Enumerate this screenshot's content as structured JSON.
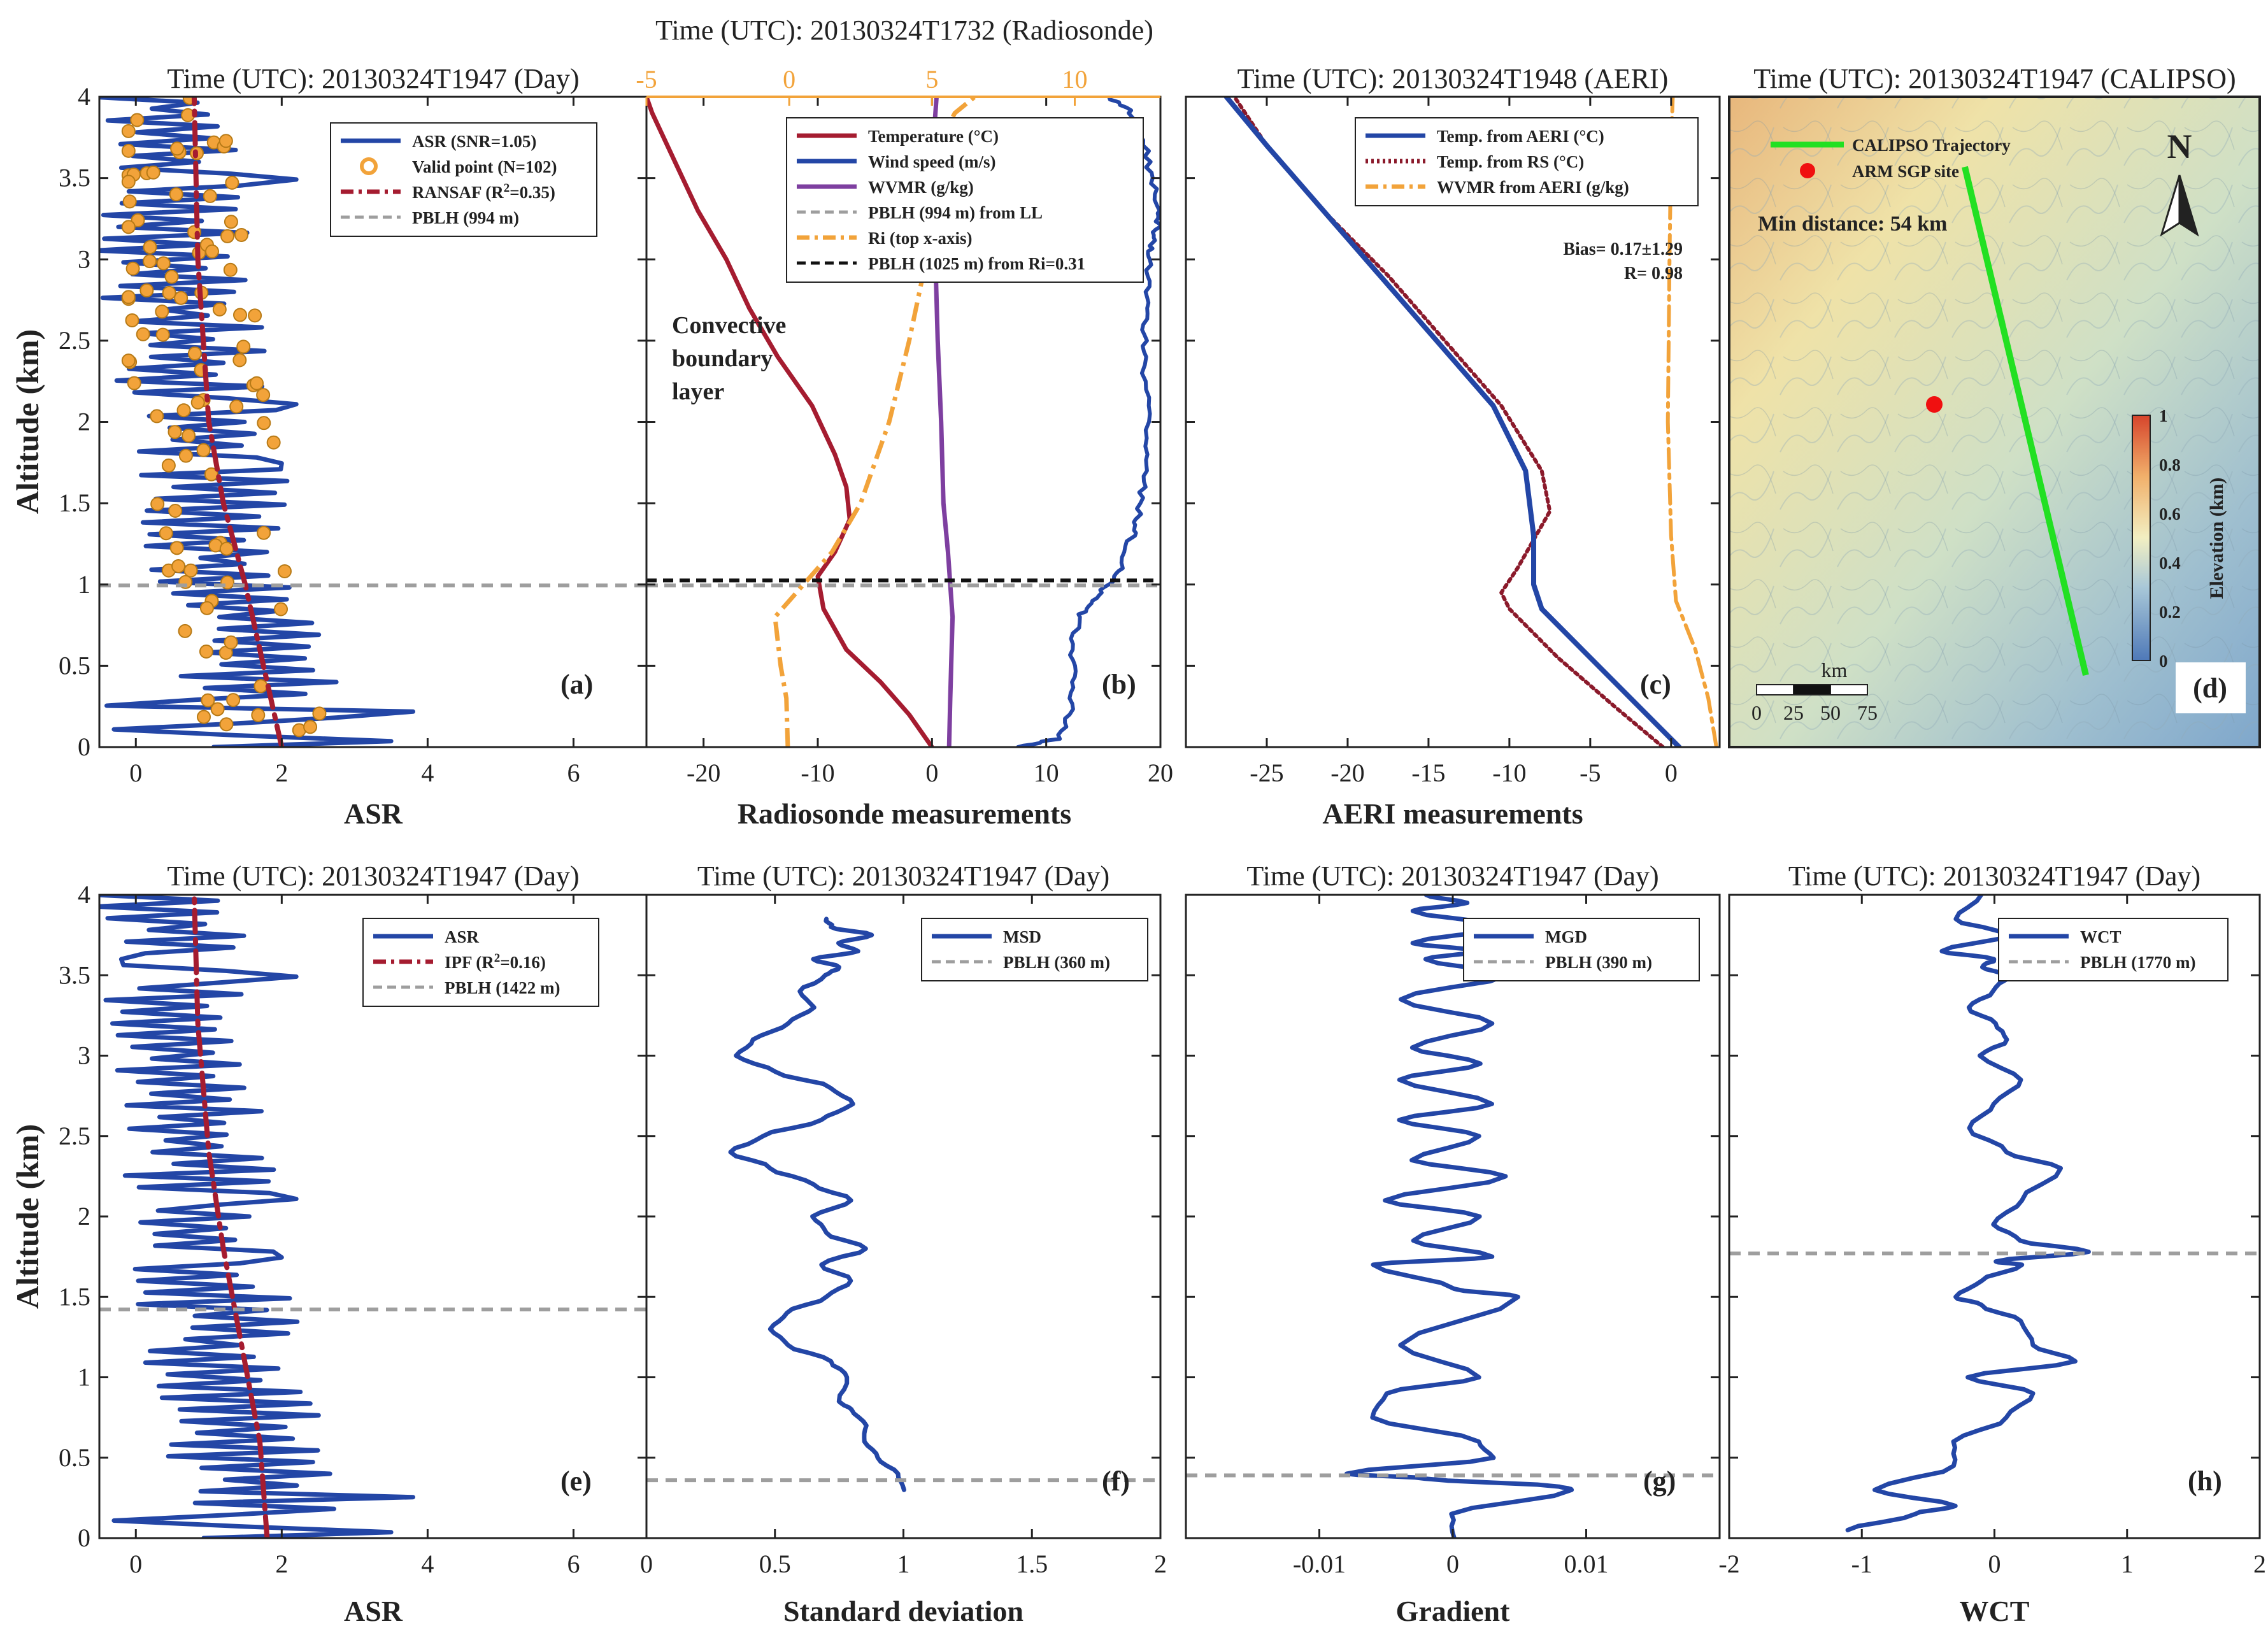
{
  "figure": {
    "y_label": "Altitude (km)",
    "y_ticks": [
      "0",
      "0.5",
      "1",
      "1.5",
      "2",
      "2.5",
      "3",
      "3.5",
      "4"
    ],
    "ylim": [
      0,
      4
    ]
  },
  "colors": {
    "blue": "#2346A6",
    "red": "#A51C30",
    "orange": "#F2A33A",
    "purple": "#7E3FA0",
    "gray": "#9E9E9E",
    "black": "#111111",
    "green": "#22E022",
    "maroon": "#8B1A2B"
  },
  "panels": {
    "a": {
      "title": "Time (UTC): 20130324T1947 (Day)",
      "xlabel": "ASR",
      "xticks": [
        "0",
        "2",
        "4",
        "6"
      ],
      "label": "(a)",
      "legend": [
        "ASR (SNR=1.05)",
        "Valid point (N=102)",
        "RANSAF (R2=0.35)",
        "PBLH (994 m)"
      ]
    },
    "b": {
      "title_top": "Time (UTC): 20130324T1732 (Radiosonde)",
      "xlabel": "Radiosonde measurements",
      "xticks": [
        "-20",
        "-10",
        "0",
        "10",
        "20"
      ],
      "top_ticks": [
        "-5",
        "0",
        "5",
        "10"
      ],
      "label": "(b)",
      "annotation": [
        "Convective",
        "boundary",
        "layer"
      ],
      "legend": [
        "Temperature (°C)",
        "Wind speed (m/s)",
        "WVMR (g/kg)",
        "PBLH (994 m) from LL",
        "Ri (top x-axis)",
        "PBLH (1025 m) from Ri=0.31"
      ]
    },
    "c": {
      "title": "Time (UTC): 20130324T1948 (AERI)",
      "xlabel": "AERI measurements",
      "xticks": [
        "-25",
        "-20",
        "-15",
        "-10",
        "-5",
        "0"
      ],
      "label": "(c)",
      "stats": [
        "Bias= 0.17±1.29",
        "R= 0.98"
      ],
      "legend": [
        "Temp. from AERI (°C)",
        "Temp. from RS (°C)",
        "WVMR from AERI (g/kg)"
      ]
    },
    "d": {
      "title": "Time (UTC): 20130324T1947 (CALIPSO)",
      "label": "(d)",
      "legend": [
        "CALIPSO Trajectory",
        "ARM SGP site"
      ],
      "min_distance": "Min distance: 54 km",
      "north": "N",
      "colorbar_label": "Elevation (km)",
      "colorbar_ticks": [
        "0",
        "0.2",
        "0.4",
        "0.6",
        "0.8",
        "1"
      ],
      "scale_unit": "km",
      "scale_ticks": [
        "0",
        "25",
        "50",
        "75"
      ]
    },
    "e": {
      "title": "Time (UTC): 20130324T1947 (Day)",
      "xlabel": "ASR",
      "xticks": [
        "0",
        "2",
        "4",
        "6"
      ],
      "label": "(e)",
      "legend": [
        "ASR",
        "IPF (R2=0.16)",
        "PBLH (1422 m)"
      ]
    },
    "f": {
      "title": "Time (UTC): 20130324T1947 (Day)",
      "xlabel": "Standard deviation",
      "xticks": [
        "0",
        "0.5",
        "1",
        "1.5",
        "2"
      ],
      "label": "(f)",
      "legend": [
        "MSD",
        "PBLH (360 m)"
      ]
    },
    "g": {
      "title": "Time (UTC): 20130324T1947 (Day)",
      "xlabel": "Gradient",
      "xticks": [
        "-0.01",
        "0",
        "0.01"
      ],
      "label": "(g)",
      "legend": [
        "MGD",
        "PBLH (390 m)"
      ]
    },
    "h": {
      "title": "Time (UTC): 20130324T1947 (Day)",
      "xlabel": "WCT",
      "xticks": [
        "-2",
        "-1",
        "0",
        "1",
        "2"
      ],
      "label": "(h)",
      "legend": [
        "WCT",
        "PBLH (1770 m)"
      ]
    }
  },
  "chart_data": [
    {
      "id": "a",
      "type": "line",
      "xlim": [
        -0.5,
        7.0
      ],
      "ylim": [
        0,
        4
      ],
      "series": [
        {
          "name": "ASR (SNR=1.05)",
          "style": "zigzag",
          "seed": 11,
          "amp_range": [
            0.2,
            2.6
          ],
          "y_range": [
            0.0,
            4.0
          ],
          "segments": 110,
          "base": [
            [
              0.0,
              1.9
            ],
            [
              0.5,
              1.7
            ],
            [
              1.0,
              1.25
            ],
            [
              2.0,
              0.9
            ],
            [
              3.0,
              0.6
            ],
            [
              4.0,
              0.5
            ]
          ],
          "spikes": [
            [
              0.05,
              3.5
            ],
            [
              0.1,
              -0.3
            ],
            [
              0.2,
              3.8
            ],
            [
              0.25,
              -0.4
            ],
            [
              1.75,
              2.0
            ],
            [
              2.1,
              2.2
            ],
            [
              3.5,
              2.2
            ],
            [
              3.55,
              -0.2
            ]
          ]
        },
        {
          "name": "Valid point (N=102)",
          "style": "scatter",
          "count": 102,
          "seed": 21,
          "y_range": [
            0.1,
            4.0
          ],
          "x_spread": [
            -0.1,
            2.5
          ]
        },
        {
          "name": "RANSAF (R2=0.35)",
          "style": "dashdot",
          "x": [
            2.0,
            1.75,
            1.5,
            1.2,
            1.0,
            0.85,
            0.8
          ],
          "y": [
            0.0,
            0.5,
            1.0,
            1.5,
            2.0,
            3.0,
            4.0
          ]
        },
        {
          "name": "PBLH (994 m)",
          "style": "hline",
          "y": 0.994
        }
      ]
    },
    {
      "id": "b",
      "type": "line",
      "xlim": [
        -25,
        20
      ],
      "ylim": [
        0,
        4
      ],
      "top_xlim": [
        -5,
        13
      ],
      "series": [
        {
          "name": "Temperature (°C)",
          "x": [
            0.0,
            -2.0,
            -4.5,
            -7.5,
            -9.5,
            -10.0,
            -8.5,
            -7.2,
            -7.5,
            -8.5,
            -10.5,
            -13.5,
            -16.0,
            -18.0,
            -20.5,
            -22.5,
            -24.5,
            -25.0
          ],
          "y": [
            0.0,
            0.2,
            0.4,
            0.6,
            0.85,
            1.05,
            1.2,
            1.4,
            1.6,
            1.8,
            2.1,
            2.4,
            2.7,
            3.0,
            3.3,
            3.6,
            3.9,
            4.0
          ]
        },
        {
          "name": "Wind speed (m/s)",
          "x": [
            7.5,
            11.0,
            12.0,
            12.5,
            12.2,
            12.8,
            14.0,
            15.5,
            16.5,
            17.5,
            18.0,
            18.5,
            19.0,
            18.8,
            18.6,
            18.5,
            18.8,
            19.0,
            19.2,
            19.8,
            20.0,
            19.2,
            18.7,
            17.5,
            15.5
          ],
          "y": [
            0.0,
            0.05,
            0.2,
            0.4,
            0.6,
            0.8,
            0.9,
            1.0,
            1.1,
            1.3,
            1.4,
            1.6,
            1.8,
            2.1,
            2.4,
            2.6,
            2.8,
            3.0,
            3.1,
            3.2,
            3.3,
            3.5,
            3.7,
            3.9,
            4.0
          ]
        },
        {
          "name": "WVMR (g/kg)",
          "x": [
            1.5,
            1.6,
            1.8,
            1.4,
            1.0,
            0.8,
            0.5,
            0.3,
            0.2,
            0.2,
            0.3,
            0.4
          ],
          "y": [
            0.0,
            0.3,
            0.8,
            1.2,
            1.5,
            2.0,
            2.5,
            3.0,
            3.5,
            3.8,
            3.9,
            4.0
          ]
        },
        {
          "name": "PBLH (994 m) from LL",
          "style": "hline",
          "y": 0.994
        },
        {
          "name": "Ri (top x-axis)",
          "axis": "top",
          "x": [
            -0.05,
            -0.1,
            -0.3,
            -0.5,
            0.5,
            1.5,
            2.5,
            3.5,
            4.2,
            4.8,
            4.6,
            5.8,
            6.5
          ],
          "y": [
            0.0,
            0.3,
            0.5,
            0.8,
            1.0,
            1.2,
            1.5,
            2.0,
            2.5,
            3.0,
            3.5,
            3.9,
            4.0
          ]
        },
        {
          "name": "PBLH (1025 m) from Ri=0.31",
          "style": "hline",
          "y": 1.025
        }
      ]
    },
    {
      "id": "c",
      "type": "line",
      "xlim": [
        -30,
        3
      ],
      "ylim": [
        0,
        4
      ],
      "series": [
        {
          "name": "Temp. from AERI (°C)",
          "x": [
            0.5,
            -2.5,
            -5.5,
            -8.0,
            -8.5,
            -8.5,
            -9.0,
            -11.0,
            -14.5,
            -18.0,
            -21.5,
            -25.0,
            -27.5
          ],
          "y": [
            0.0,
            0.3,
            0.6,
            0.85,
            1.0,
            1.3,
            1.7,
            2.1,
            2.5,
            2.9,
            3.3,
            3.7,
            4.0
          ]
        },
        {
          "name": "Temp. from RS (°C)",
          "x": [
            -0.5,
            -3.5,
            -7.0,
            -10.0,
            -10.5,
            -9.5,
            -7.5,
            -8.0,
            -10.5,
            -14.0,
            -17.5,
            -21.5,
            -25.0,
            -27.0
          ],
          "y": [
            0.0,
            0.25,
            0.55,
            0.85,
            0.95,
            1.1,
            1.45,
            1.7,
            2.1,
            2.5,
            2.9,
            3.3,
            3.7,
            4.0
          ]
        },
        {
          "name": "WVMR from AERI (g/kg)",
          "x": [
            2.8,
            2.3,
            1.5,
            0.3,
            0.0,
            -0.2,
            -0.1,
            0.0,
            0.1
          ],
          "y": [
            0.0,
            0.3,
            0.6,
            0.9,
            1.3,
            2.0,
            3.0,
            3.7,
            4.0
          ]
        }
      ]
    },
    {
      "id": "e",
      "type": "line",
      "xlim": [
        -0.5,
        7.0
      ],
      "ylim": [
        0,
        4
      ],
      "series": [
        {
          "name": "ASR",
          "style": "zigzag",
          "seed": 12,
          "amp_range": [
            0.2,
            2.6
          ],
          "y_range": [
            0.0,
            4.0
          ],
          "segments": 110,
          "base": [
            [
              0.0,
              1.8
            ],
            [
              0.5,
              1.6
            ],
            [
              1.0,
              1.2
            ],
            [
              2.0,
              0.9
            ],
            [
              3.0,
              0.6
            ],
            [
              4.0,
              0.5
            ]
          ],
          "spikes": [
            [
              0.05,
              3.5
            ],
            [
              0.12,
              -0.3
            ],
            [
              0.25,
              3.8
            ],
            [
              1.75,
              2.0
            ],
            [
              2.1,
              2.2
            ],
            [
              3.5,
              2.2
            ],
            [
              3.6,
              -0.2
            ]
          ]
        },
        {
          "name": "IPF (R2=0.16)",
          "style": "dashdot",
          "x": [
            1.8,
            1.7,
            1.45,
            1.2,
            1.0,
            0.85,
            0.8
          ],
          "y": [
            0.0,
            0.6,
            1.2,
            1.8,
            2.4,
            3.2,
            4.0
          ]
        },
        {
          "name": "PBLH (1422 m)",
          "style": "hline",
          "y": 1.422
        }
      ]
    },
    {
      "id": "f",
      "type": "line",
      "xlim": [
        0,
        2
      ],
      "ylim": [
        0,
        4
      ],
      "series": [
        {
          "name": "MSD",
          "x": [
            1.0,
            0.98,
            0.9,
            0.85,
            0.85,
            0.8,
            0.75,
            0.78,
            0.72,
            0.55,
            0.48,
            0.55,
            0.7,
            0.8,
            0.68,
            0.85,
            0.7,
            0.65,
            0.8,
            0.65,
            0.48,
            0.33,
            0.45,
            0.68,
            0.8,
            0.72,
            0.5,
            0.35,
            0.42,
            0.55,
            0.65,
            0.6,
            0.7,
            0.75,
            0.65,
            0.82,
            0.75,
            0.88,
            0.72,
            0.7
          ],
          "y": [
            0.3,
            0.4,
            0.5,
            0.6,
            0.7,
            0.8,
            0.85,
            1.0,
            1.1,
            1.2,
            1.3,
            1.4,
            1.5,
            1.6,
            1.7,
            1.8,
            1.9,
            2.0,
            2.1,
            2.2,
            2.3,
            2.4,
            2.5,
            2.6,
            2.7,
            2.8,
            2.9,
            3.0,
            3.1,
            3.2,
            3.3,
            3.4,
            3.5,
            3.55,
            3.6,
            3.65,
            3.7,
            3.75,
            3.8,
            3.85
          ]
        },
        {
          "name": "PBLH (360 m)",
          "style": "hline",
          "y": 0.36
        }
      ]
    },
    {
      "id": "g",
      "type": "line",
      "xlim": [
        -0.02,
        0.02
      ],
      "ylim": [
        0,
        4
      ],
      "series": [
        {
          "name": "MGD",
          "x": [
            0.0,
            0.0,
            0.009,
            0.008,
            -0.002,
            -0.008,
            0.003,
            0.002,
            -0.006,
            -0.005,
            0.002,
            -0.004,
            0.005,
            0.0,
            -0.006,
            0.003,
            -0.003,
            0.002,
            -0.005,
            0.004,
            -0.003,
            0.002,
            -0.004,
            0.003,
            -0.004,
            0.002,
            -0.003,
            0.003,
            -0.004,
            0.004,
            -0.002,
            0.002,
            -0.003,
            0.004,
            -0.003,
            0.001,
            -0.002
          ],
          "y": [
            0.0,
            0.15,
            0.3,
            0.32,
            0.37,
            0.4,
            0.5,
            0.6,
            0.75,
            0.9,
            1.0,
            1.2,
            1.5,
            1.55,
            1.7,
            1.75,
            1.85,
            2.0,
            2.1,
            2.25,
            2.35,
            2.5,
            2.6,
            2.7,
            2.85,
            2.95,
            3.05,
            3.2,
            3.35,
            3.5,
            3.6,
            3.65,
            3.7,
            3.8,
            3.9,
            3.95,
            4.0
          ]
        },
        {
          "name": "PBLH (390 m)",
          "style": "hline",
          "y": 0.39
        }
      ]
    },
    {
      "id": "h",
      "type": "line",
      "xlim": [
        -2,
        2
      ],
      "ylim": [
        0,
        4
      ],
      "series": [
        {
          "name": "WCT",
          "x": [
            -1.1,
            -0.6,
            -0.3,
            -0.9,
            -0.3,
            -0.3,
            0.1,
            0.3,
            -0.2,
            0.6,
            0.3,
            0.2,
            -0.1,
            -0.3,
            -0.1,
            0.2,
            0.0,
            0.7,
            0.2,
            0.0,
            0.2,
            0.5,
            0.1,
            -0.2,
            0.0,
            0.2,
            -0.1,
            0.1,
            0.0,
            -0.2,
            0.0,
            0.1,
            -0.1,
            0.0,
            -0.4,
            0.1,
            -0.3,
            -0.1
          ],
          "y": [
            0.05,
            0.15,
            0.2,
            0.3,
            0.45,
            0.6,
            0.75,
            0.9,
            1.0,
            1.1,
            1.2,
            1.35,
            1.45,
            1.5,
            1.6,
            1.7,
            1.72,
            1.78,
            1.85,
            1.95,
            2.1,
            2.3,
            2.4,
            2.55,
            2.7,
            2.85,
            3.0,
            3.1,
            3.2,
            3.3,
            3.4,
            3.5,
            3.55,
            3.6,
            3.65,
            3.75,
            3.85,
            4.0
          ]
        },
        {
          "name": "PBLH (1770 m)",
          "style": "hline",
          "y": 1.77
        }
      ]
    }
  ]
}
